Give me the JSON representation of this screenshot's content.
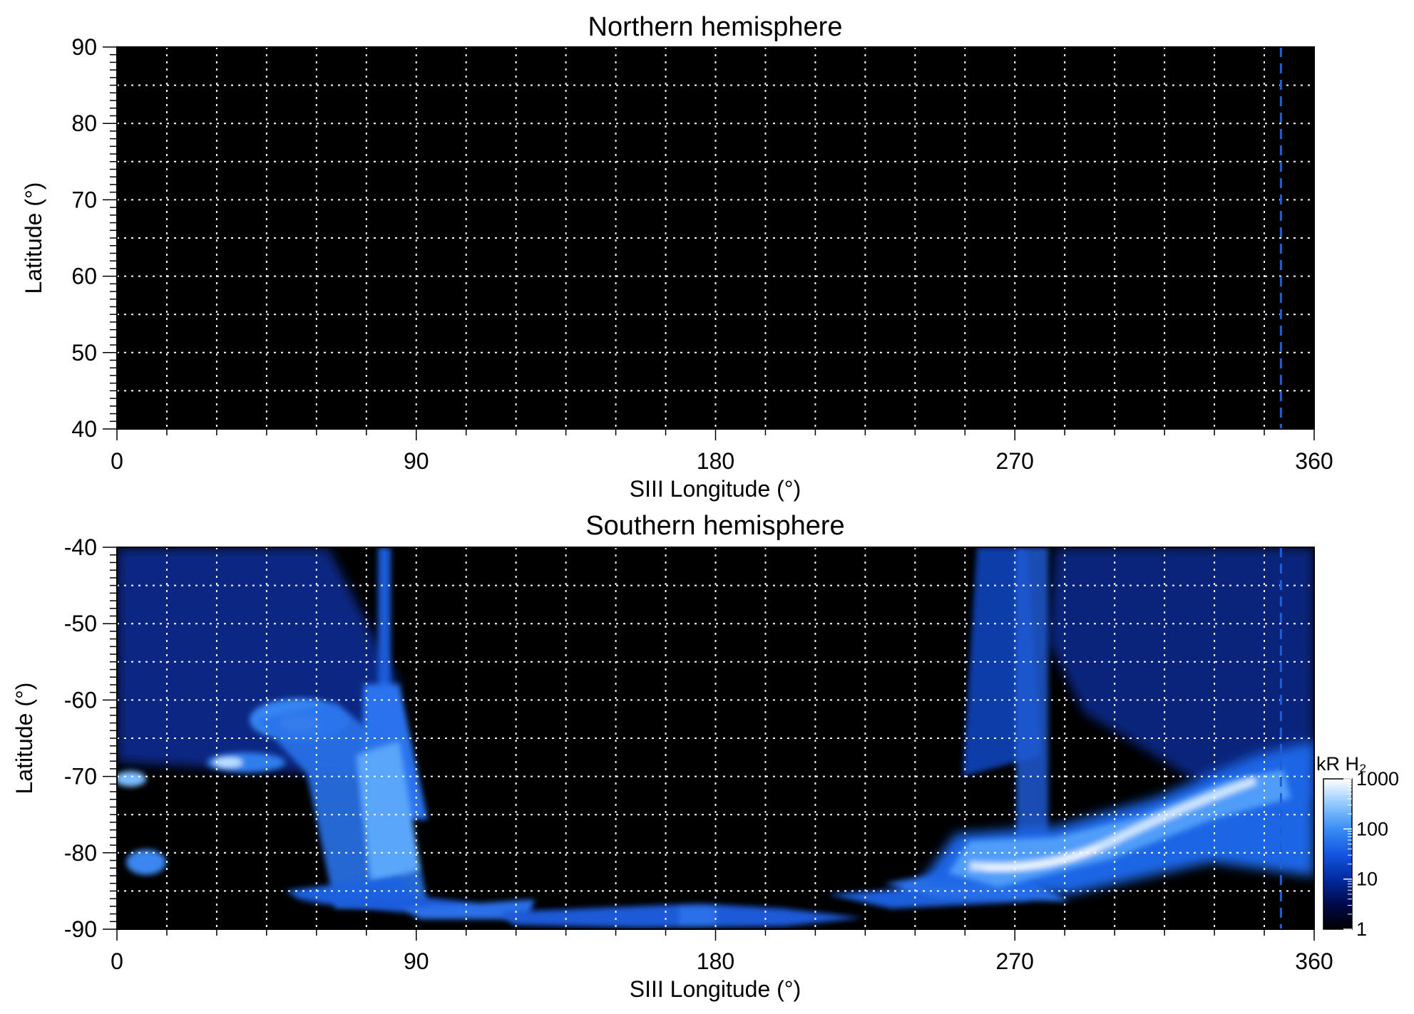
{
  "colors": {
    "background": "#000000",
    "grid": "#ffffff",
    "marker_line": "#1f5fd6",
    "colormap": [
      "#000000",
      "#000a4d",
      "#002a9e",
      "#1456e0",
      "#3a8ff5",
      "#8fc8ff",
      "#ffffff"
    ]
  },
  "chart_data": [
    {
      "type": "heatmap",
      "title": "Northern hemisphere",
      "xlabel": "SIII Longitude (°)",
      "ylabel": "Latitude (°)",
      "xlim": [
        0,
        360
      ],
      "ylim": [
        40,
        90
      ],
      "xticks": [
        0,
        90,
        180,
        270,
        360
      ],
      "xtick_labels": [
        "0",
        "90",
        "180",
        "270",
        "360"
      ],
      "yticks": [
        40,
        50,
        60,
        70,
        80,
        90
      ],
      "ytick_labels": [
        "40",
        "50",
        "60",
        "70",
        "80",
        "90"
      ],
      "grid": true,
      "grid_x_spacing": 15,
      "grid_y_spacing": 5,
      "marker_longitude": 350,
      "emission": []
    },
    {
      "type": "heatmap",
      "title": "Southern hemisphere",
      "xlabel": "SIII Longitude (°)",
      "ylabel": "Latitude (°)",
      "xlim": [
        0,
        360
      ],
      "ylim": [
        -90,
        -40
      ],
      "xticks": [
        0,
        90,
        180,
        270,
        360
      ],
      "xtick_labels": [
        "0",
        "90",
        "180",
        "270",
        "360"
      ],
      "yticks": [
        -90,
        -80,
        -70,
        -60,
        -50,
        -40
      ],
      "ytick_labels": [
        "-90",
        "-80",
        "-70",
        "-60",
        "-50",
        "-40"
      ],
      "grid": true,
      "grid_x_spacing": 15,
      "grid_y_spacing": 5,
      "marker_longitude": 350,
      "colorbar": {
        "label": "kR H₂",
        "scale": "log",
        "range": [
          1,
          1000
        ],
        "ticks": [
          1,
          10,
          100,
          1000
        ],
        "tick_labels": [
          "1",
          "10",
          "100",
          "1000"
        ]
      },
      "emission": [
        {
          "region": "auroral-oval-east",
          "lon": [
            240,
            340
          ],
          "lat": [
            -86,
            -70
          ],
          "peak_kR": 1000
        },
        {
          "region": "auroral-oval-west",
          "lon": [
            0,
            85
          ],
          "lat": [
            -87,
            -60
          ],
          "peak_kR": 300
        },
        {
          "region": "polar-cap-fill",
          "lon": [
            90,
            230
          ],
          "lat": [
            -90,
            -86
          ],
          "peak_kR": 100
        }
      ]
    }
  ]
}
